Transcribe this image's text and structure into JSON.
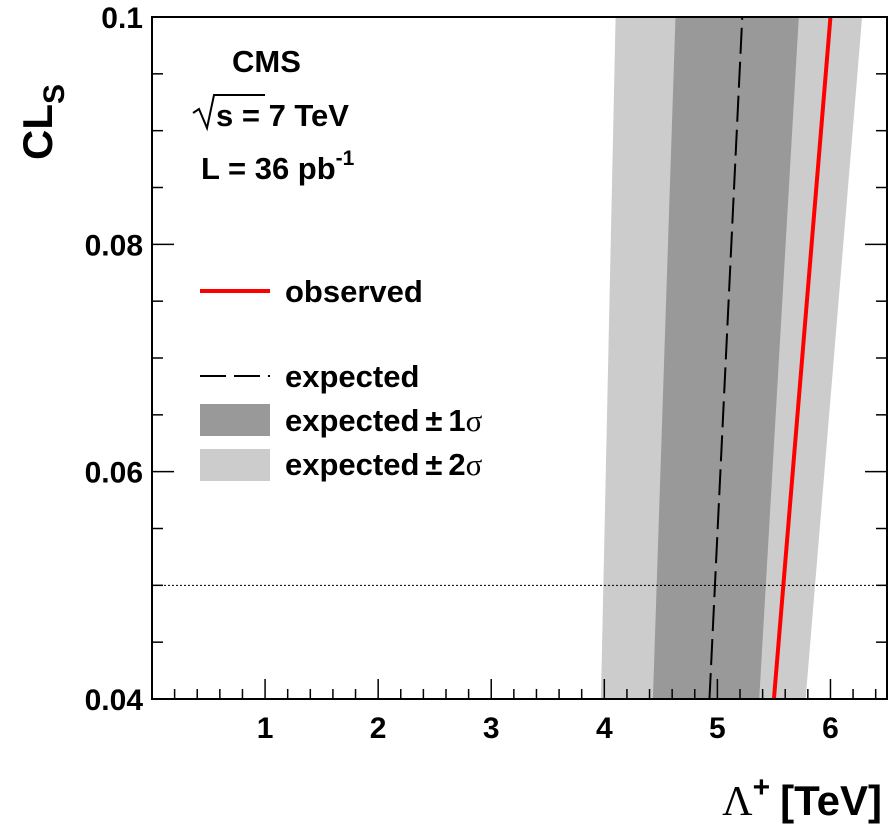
{
  "chart_data": {
    "type": "line",
    "xlabel": {
      "symbol": "Λ",
      "sup": "+",
      "unit": "[TeV]"
    },
    "ylabel": {
      "main": "CL",
      "sub": "S"
    },
    "xlim": [
      0,
      6.5
    ],
    "ylim": [
      0.04,
      0.1
    ],
    "x_ticks": [
      1,
      2,
      3,
      4,
      5,
      6
    ],
    "x_tick_labels": [
      "1",
      "2",
      "3",
      "4",
      "5",
      "6"
    ],
    "y_ticks": [
      0.04,
      0.06,
      0.08,
      0.1
    ],
    "y_tick_labels": [
      "0.04",
      "0.06",
      "0.08",
      "0.1"
    ],
    "y_minor_step": 0.005,
    "x_minor_step": 0.2,
    "reference_line": {
      "y": 0.05,
      "style": "dotted"
    },
    "bands": {
      "two_sigma": {
        "low": [
          {
            "x": 3.97,
            "y": 0.04
          },
          {
            "x": 4.1,
            "y": 0.1
          }
        ],
        "high": [
          {
            "x": 5.78,
            "y": 0.04
          },
          {
            "x": 6.28,
            "y": 0.1
          }
        ],
        "color": "#cccccc"
      },
      "one_sigma": {
        "low": [
          {
            "x": 4.43,
            "y": 0.04
          },
          {
            "x": 4.63,
            "y": 0.1
          }
        ],
        "high": [
          {
            "x": 5.37,
            "y": 0.04
          },
          {
            "x": 5.72,
            "y": 0.1
          }
        ],
        "color": "#999999"
      }
    },
    "series": [
      {
        "name": "expected",
        "style": "dashed",
        "color": "#000000",
        "points": [
          {
            "x": 4.93,
            "y": 0.04
          },
          {
            "x": 5.22,
            "y": 0.1
          }
        ]
      },
      {
        "name": "observed",
        "style": "solid",
        "color": "#ff0000",
        "points": [
          {
            "x": 5.5,
            "y": 0.04
          },
          {
            "x": 6.0,
            "y": 0.1
          }
        ]
      }
    ],
    "legend": {
      "observed": "observed",
      "expected": "expected",
      "one_sigma": {
        "text": "expected",
        "pm": "±",
        "n": "1",
        "sym": "σ"
      },
      "two_sigma": {
        "text": "expected",
        "pm": "±",
        "n": "2",
        "sym": "σ"
      }
    },
    "annotations": {
      "experiment": "CMS",
      "energy_pre": "s = 7 TeV",
      "lumi_pre": "L = 36 pb",
      "lumi_exp": "-1"
    },
    "grid": false,
    "legend_placement": "left"
  }
}
